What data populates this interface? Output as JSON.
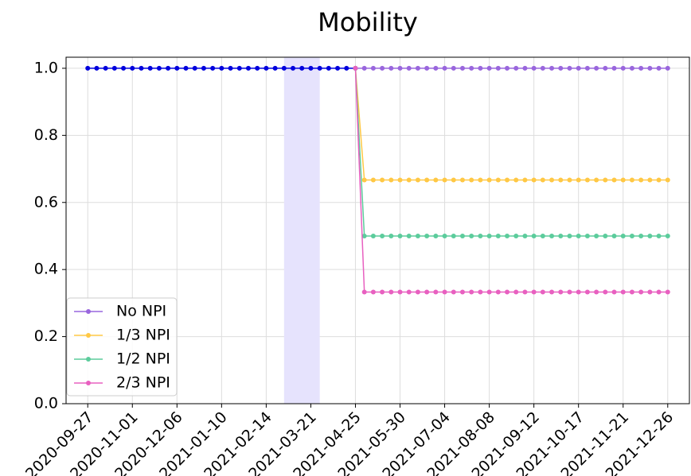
{
  "chart_data": {
    "type": "line",
    "title": "Mobility",
    "x": [
      "2020-09-27",
      "2020-10-04",
      "2020-10-11",
      "2020-10-18",
      "2020-10-25",
      "2020-11-01",
      "2020-11-08",
      "2020-11-15",
      "2020-11-22",
      "2020-11-29",
      "2020-12-06",
      "2020-12-13",
      "2020-12-20",
      "2020-12-27",
      "2021-01-03",
      "2021-01-10",
      "2021-01-17",
      "2021-01-24",
      "2021-01-31",
      "2021-02-07",
      "2021-02-14",
      "2021-02-21",
      "2021-02-28",
      "2021-03-07",
      "2021-03-14",
      "2021-03-21",
      "2021-03-28",
      "2021-04-04",
      "2021-04-11",
      "2021-04-18",
      "2021-04-25",
      "2021-05-02",
      "2021-05-09",
      "2021-05-16",
      "2021-05-23",
      "2021-05-30",
      "2021-06-06",
      "2021-06-13",
      "2021-06-20",
      "2021-06-27",
      "2021-07-04",
      "2021-07-11",
      "2021-07-18",
      "2021-07-25",
      "2021-08-01",
      "2021-08-08",
      "2021-08-15",
      "2021-08-22",
      "2021-08-29",
      "2021-09-05",
      "2021-09-12",
      "2021-09-19",
      "2021-09-26",
      "2021-10-03",
      "2021-10-10",
      "2021-10-17",
      "2021-10-24",
      "2021-10-31",
      "2021-11-07",
      "2021-11-14",
      "2021-11-21",
      "2021-11-28",
      "2021-12-05",
      "2021-12-12",
      "2021-12-19",
      "2021-12-26"
    ],
    "series": [
      {
        "color": "#0000dd",
        "values": [
          1,
          1,
          1,
          1,
          1,
          1,
          1,
          1,
          1,
          1,
          1,
          1,
          1,
          1,
          1,
          1,
          1,
          1,
          1,
          1,
          1,
          1,
          1,
          1,
          1,
          1,
          1,
          1,
          1,
          1,
          1,
          null,
          null,
          null,
          null,
          null,
          null,
          null,
          null,
          null,
          null,
          null,
          null,
          null,
          null,
          null,
          null,
          null,
          null,
          null,
          null,
          null,
          null,
          null,
          null,
          null,
          null,
          null,
          null,
          null,
          null,
          null,
          null,
          null,
          null,
          null
        ]
      },
      {
        "name": "No NPI",
        "color": "#9966dd",
        "values": [
          null,
          null,
          null,
          null,
          null,
          null,
          null,
          null,
          null,
          null,
          null,
          null,
          null,
          null,
          null,
          null,
          null,
          null,
          null,
          null,
          null,
          null,
          null,
          null,
          null,
          null,
          null,
          null,
          null,
          null,
          1,
          1,
          1,
          1,
          1,
          1,
          1,
          1,
          1,
          1,
          1,
          1,
          1,
          1,
          1,
          1,
          1,
          1,
          1,
          1,
          1,
          1,
          1,
          1,
          1,
          1,
          1,
          1,
          1,
          1,
          1,
          1,
          1,
          1,
          1,
          1
        ]
      },
      {
        "name": "1/3 NPI",
        "color": "#ffc845",
        "values": [
          null,
          null,
          null,
          null,
          null,
          null,
          null,
          null,
          null,
          null,
          null,
          null,
          null,
          null,
          null,
          null,
          null,
          null,
          null,
          null,
          null,
          null,
          null,
          null,
          null,
          null,
          null,
          null,
          null,
          null,
          1,
          0.667,
          0.667,
          0.667,
          0.667,
          0.667,
          0.667,
          0.667,
          0.667,
          0.667,
          0.667,
          0.667,
          0.667,
          0.667,
          0.667,
          0.667,
          0.667,
          0.667,
          0.667,
          0.667,
          0.667,
          0.667,
          0.667,
          0.667,
          0.667,
          0.667,
          0.667,
          0.667,
          0.667,
          0.667,
          0.667,
          0.667,
          0.667,
          0.667,
          0.667,
          0.667
        ]
      },
      {
        "name": "1/2 NPI",
        "color": "#5ccc9c",
        "values": [
          null,
          null,
          null,
          null,
          null,
          null,
          null,
          null,
          null,
          null,
          null,
          null,
          null,
          null,
          null,
          null,
          null,
          null,
          null,
          null,
          null,
          null,
          null,
          null,
          null,
          null,
          null,
          null,
          null,
          null,
          1,
          0.5,
          0.5,
          0.5,
          0.5,
          0.5,
          0.5,
          0.5,
          0.5,
          0.5,
          0.5,
          0.5,
          0.5,
          0.5,
          0.5,
          0.5,
          0.5,
          0.5,
          0.5,
          0.5,
          0.5,
          0.5,
          0.5,
          0.5,
          0.5,
          0.5,
          0.5,
          0.5,
          0.5,
          0.5,
          0.5,
          0.5,
          0.5,
          0.5,
          0.5,
          0.5
        ]
      },
      {
        "name": "2/3 NPI",
        "color": "#e860c0",
        "values": [
          null,
          null,
          null,
          null,
          null,
          null,
          null,
          null,
          null,
          null,
          null,
          null,
          null,
          null,
          null,
          null,
          null,
          null,
          null,
          null,
          null,
          null,
          null,
          null,
          null,
          null,
          null,
          null,
          null,
          null,
          1,
          0.333,
          0.333,
          0.333,
          0.333,
          0.333,
          0.333,
          0.333,
          0.333,
          0.333,
          0.333,
          0.333,
          0.333,
          0.333,
          0.333,
          0.333,
          0.333,
          0.333,
          0.333,
          0.333,
          0.333,
          0.333,
          0.333,
          0.333,
          0.333,
          0.333,
          0.333,
          0.333,
          0.333,
          0.333,
          0.333,
          0.333,
          0.333,
          0.333,
          0.333,
          0.333
        ]
      }
    ],
    "shaded_x": [
      "2021-02-28",
      "2021-03-28"
    ],
    "shade_color": "#e6e3fd",
    "xlim": [
      "2020-09-10",
      "2022-01-12"
    ],
    "xticks": [
      "2020-09-27",
      "2020-11-01",
      "2020-12-06",
      "2021-01-10",
      "2021-02-14",
      "2021-03-21",
      "2021-04-25",
      "2021-05-30",
      "2021-07-04",
      "2021-08-08",
      "2021-09-12",
      "2021-10-17",
      "2021-11-21",
      "2021-12-26"
    ],
    "ylim": [
      0,
      1.033
    ],
    "yticks": [
      {
        "value": 0,
        "label": "0.0"
      },
      {
        "value": 0.2,
        "label": "0.2"
      },
      {
        "value": 0.4,
        "label": "0.4"
      },
      {
        "value": 0.6,
        "label": "0.6"
      },
      {
        "value": 0.8,
        "label": "0.8"
      },
      {
        "value": 1,
        "label": "1.0"
      }
    ],
    "grid": true,
    "legend": "lower left"
  }
}
